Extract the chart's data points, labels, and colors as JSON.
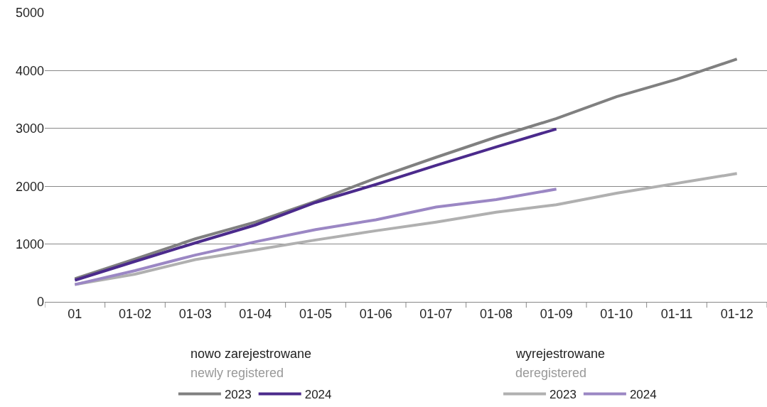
{
  "chart_data": {
    "type": "line",
    "categories": [
      "01",
      "01-02",
      "01-03",
      "01-04",
      "01-05",
      "01-06",
      "01-07",
      "01-08",
      "01-09",
      "01-10",
      "01-11",
      "01-12"
    ],
    "series": [
      {
        "name": "2023",
        "color": "#808080",
        "values": [
          400,
          740,
          1090,
          1380,
          1740,
          2140,
          2500,
          2850,
          3170,
          3550,
          3850,
          4200
        ]
      },
      {
        "name": "2024",
        "color": "#4b2a8c",
        "values": [
          375,
          700,
          1020,
          1330,
          1720,
          2030,
          2360,
          2680,
          2990,
          null,
          null,
          null
        ]
      },
      {
        "name": "2023",
        "color": "#b0b0b0",
        "values": [
          300,
          480,
          730,
          900,
          1070,
          1230,
          1380,
          1550,
          1680,
          1880,
          2050,
          2220
        ]
      },
      {
        "name": "2024",
        "color": "#9b87c4",
        "values": [
          300,
          540,
          810,
          1040,
          1250,
          1420,
          1640,
          1770,
          1950,
          null,
          null,
          null
        ]
      }
    ],
    "ylim": [
      0,
      5000
    ],
    "yticks": [
      0,
      1000,
      2000,
      3000,
      4000,
      5000
    ],
    "grid": "y",
    "legend": "bottom",
    "marker": "none",
    "line_style": "solid",
    "annotations": [
      "nowo zarejestrowane",
      "newly registered",
      "wyrejestrowane",
      "deregistered"
    ]
  }
}
